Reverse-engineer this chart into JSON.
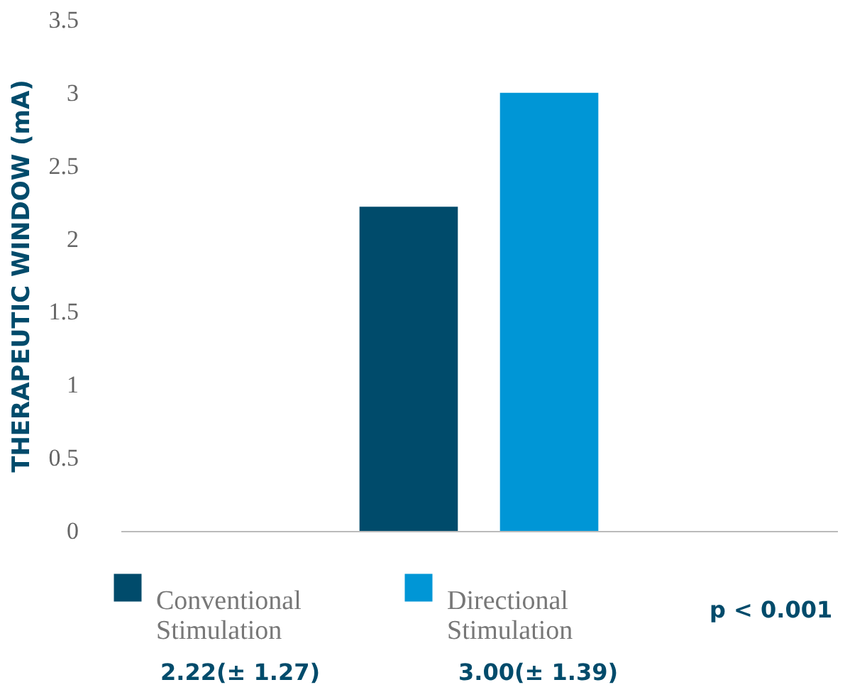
{
  "chart_data": {
    "type": "bar",
    "ylabel": "THERAPEUTIC WINDOW (mA)",
    "categories": [
      null
    ],
    "series": [
      {
        "name": "Conventional Stimulation",
        "color": "#004b6b",
        "values": [
          2.22
        ]
      },
      {
        "name": "Directional Stimulation",
        "color": "#0096d6",
        "values": [
          3.0
        ]
      }
    ],
    "ylim": [
      0,
      3.5
    ],
    "yticks": [
      0,
      0.5,
      1,
      1.5,
      2,
      2.5,
      3,
      3.5
    ],
    "grid": false,
    "legend": "bottom",
    "annotations": [
      "2.22(± 1.27)",
      "3.00(± 1.39)",
      "p < 0.001"
    ]
  }
}
